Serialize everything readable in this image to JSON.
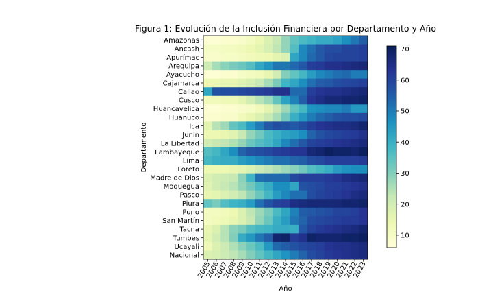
{
  "chart_data": {
    "type": "heatmap",
    "title": "Figura 1: Evolución de la Inclusión Financiera por Departamento y Año",
    "xlabel": "Año",
    "ylabel": "Departamento",
    "x": [
      "2005",
      "2006",
      "2007",
      "2008",
      "2009",
      "2010",
      "2011",
      "2012",
      "2013",
      "2014",
      "2015",
      "2016",
      "2017",
      "2018",
      "2019",
      "2020",
      "2021",
      "2022",
      "2023"
    ],
    "y": [
      "Amazonas",
      "Ancash",
      "Apurímac",
      "Arequipa",
      "Ayacucho",
      "Cajamarca",
      "Callao",
      "Cusco",
      "Huancavelica",
      "Huánuco",
      "Ica",
      "Junín",
      "La Libertad",
      "Lambayeque",
      "Lima",
      "Loreto",
      "Madre de Dios",
      "Moquegua",
      "Pasco",
      "Piura",
      "Puno",
      "San Martín",
      "Tacna",
      "Tumbes",
      "Ucayali",
      "Nacional"
    ],
    "values": [
      [
        7,
        7,
        8,
        8,
        9,
        11,
        14,
        18,
        22,
        28,
        34,
        37,
        39,
        41,
        41,
        43,
        47,
        51,
        55
      ],
      [
        10,
        10,
        11,
        11,
        12,
        14,
        16,
        19,
        23,
        28,
        36,
        48,
        52,
        56,
        58,
        58,
        60,
        60,
        61
      ],
      [
        9,
        9,
        10,
        10,
        11,
        12,
        13,
        14,
        16,
        18,
        42,
        48,
        53,
        56,
        59,
        60,
        60,
        60,
        61
      ],
      [
        21,
        26,
        29,
        31,
        33,
        36,
        42,
        46,
        51,
        51,
        53,
        56,
        61,
        62,
        64,
        64,
        65,
        66,
        67
      ],
      [
        7,
        7,
        8,
        8,
        10,
        11,
        12,
        15,
        20,
        30,
        34,
        38,
        44,
        48,
        50,
        52,
        53,
        50,
        50
      ],
      [
        14,
        14,
        15,
        15,
        17,
        19,
        22,
        26,
        31,
        39,
        42,
        47,
        52,
        55,
        56,
        58,
        59,
        60,
        61
      ],
      [
        42,
        57,
        58,
        58,
        59,
        60,
        61,
        62,
        64,
        64,
        53,
        53,
        61,
        63,
        64,
        64,
        65,
        66,
        67
      ],
      [
        12,
        12,
        13,
        13,
        16,
        20,
        24,
        27,
        34,
        43,
        49,
        55,
        63,
        65,
        67,
        67,
        68,
        68,
        69
      ],
      [
        7,
        7,
        8,
        8,
        9,
        10,
        12,
        16,
        22,
        27,
        34,
        38,
        46,
        47,
        48,
        48,
        50,
        45,
        45
      ],
      [
        8,
        8,
        9,
        9,
        12,
        15,
        18,
        22,
        26,
        32,
        40,
        45,
        50,
        53,
        55,
        57,
        58,
        58,
        59
      ],
      [
        16,
        24,
        27,
        34,
        37,
        44,
        50,
        56,
        58,
        57,
        56,
        58,
        61,
        63,
        64,
        65,
        65,
        66,
        68
      ],
      [
        14,
        14,
        15,
        17,
        22,
        28,
        32,
        37,
        40,
        43,
        44,
        47,
        54,
        57,
        59,
        60,
        61,
        62,
        64
      ],
      [
        20,
        22,
        23,
        25,
        28,
        33,
        36,
        38,
        42,
        48,
        52,
        56,
        60,
        61,
        62,
        63,
        64,
        65,
        66
      ],
      [
        36,
        38,
        42,
        47,
        54,
        57,
        58,
        59,
        61,
        62,
        63,
        63,
        67,
        68,
        70,
        69,
        69,
        68,
        70
      ],
      [
        38,
        40,
        41,
        41,
        44,
        46,
        48,
        50,
        52,
        52,
        54,
        55,
        58,
        59,
        61,
        61,
        61,
        61,
        62
      ],
      [
        14,
        14,
        14,
        15,
        16,
        18,
        21,
        23,
        25,
        27,
        29,
        32,
        36,
        38,
        40,
        44,
        46,
        47,
        47
      ],
      [
        18,
        20,
        21,
        22,
        29,
        39,
        52,
        53,
        53,
        53,
        59,
        61,
        61,
        61,
        62,
        63,
        65,
        66,
        67
      ],
      [
        17,
        20,
        22,
        24,
        28,
        32,
        37,
        41,
        47,
        47,
        42,
        57,
        58,
        59,
        61,
        61,
        62,
        63,
        64
      ],
      [
        15,
        16,
        18,
        20,
        23,
        28,
        33,
        38,
        44,
        48,
        52,
        52,
        58,
        60,
        61,
        62,
        63,
        65,
        66
      ],
      [
        34,
        31,
        36,
        39,
        40,
        44,
        52,
        57,
        60,
        61,
        65,
        66,
        67,
        67,
        67,
        67,
        68,
        68,
        69
      ],
      [
        11,
        11,
        12,
        14,
        18,
        23,
        27,
        31,
        37,
        42,
        49,
        55,
        56,
        57,
        58,
        60,
        60,
        61,
        63
      ],
      [
        11,
        12,
        13,
        15,
        18,
        22,
        28,
        33,
        40,
        44,
        51,
        54,
        58,
        59,
        60,
        61,
        62,
        62,
        63
      ],
      [
        15,
        18,
        24,
        29,
        31,
        36,
        38,
        39,
        41,
        41,
        40,
        56,
        60,
        62,
        63,
        64,
        65,
        66,
        68
      ],
      [
        16,
        20,
        24,
        30,
        41,
        45,
        51,
        55,
        68,
        69,
        62,
        64,
        69,
        68,
        68,
        68,
        69,
        69,
        70
      ],
      [
        13,
        18,
        21,
        25,
        29,
        33,
        37,
        45,
        53,
        55,
        57,
        59,
        60,
        61,
        63,
        64,
        64,
        65,
        66
      ],
      [
        18,
        19,
        21,
        23,
        26,
        30,
        34,
        38,
        42,
        46,
        50,
        54,
        58,
        60,
        62,
        63,
        64,
        65,
        66
      ]
    ],
    "vmin": 6,
    "vmax": 71,
    "colorbar_ticks": [
      10,
      20,
      30,
      40,
      50,
      60,
      70
    ],
    "colormap": "YlGnBu",
    "grid": false
  }
}
